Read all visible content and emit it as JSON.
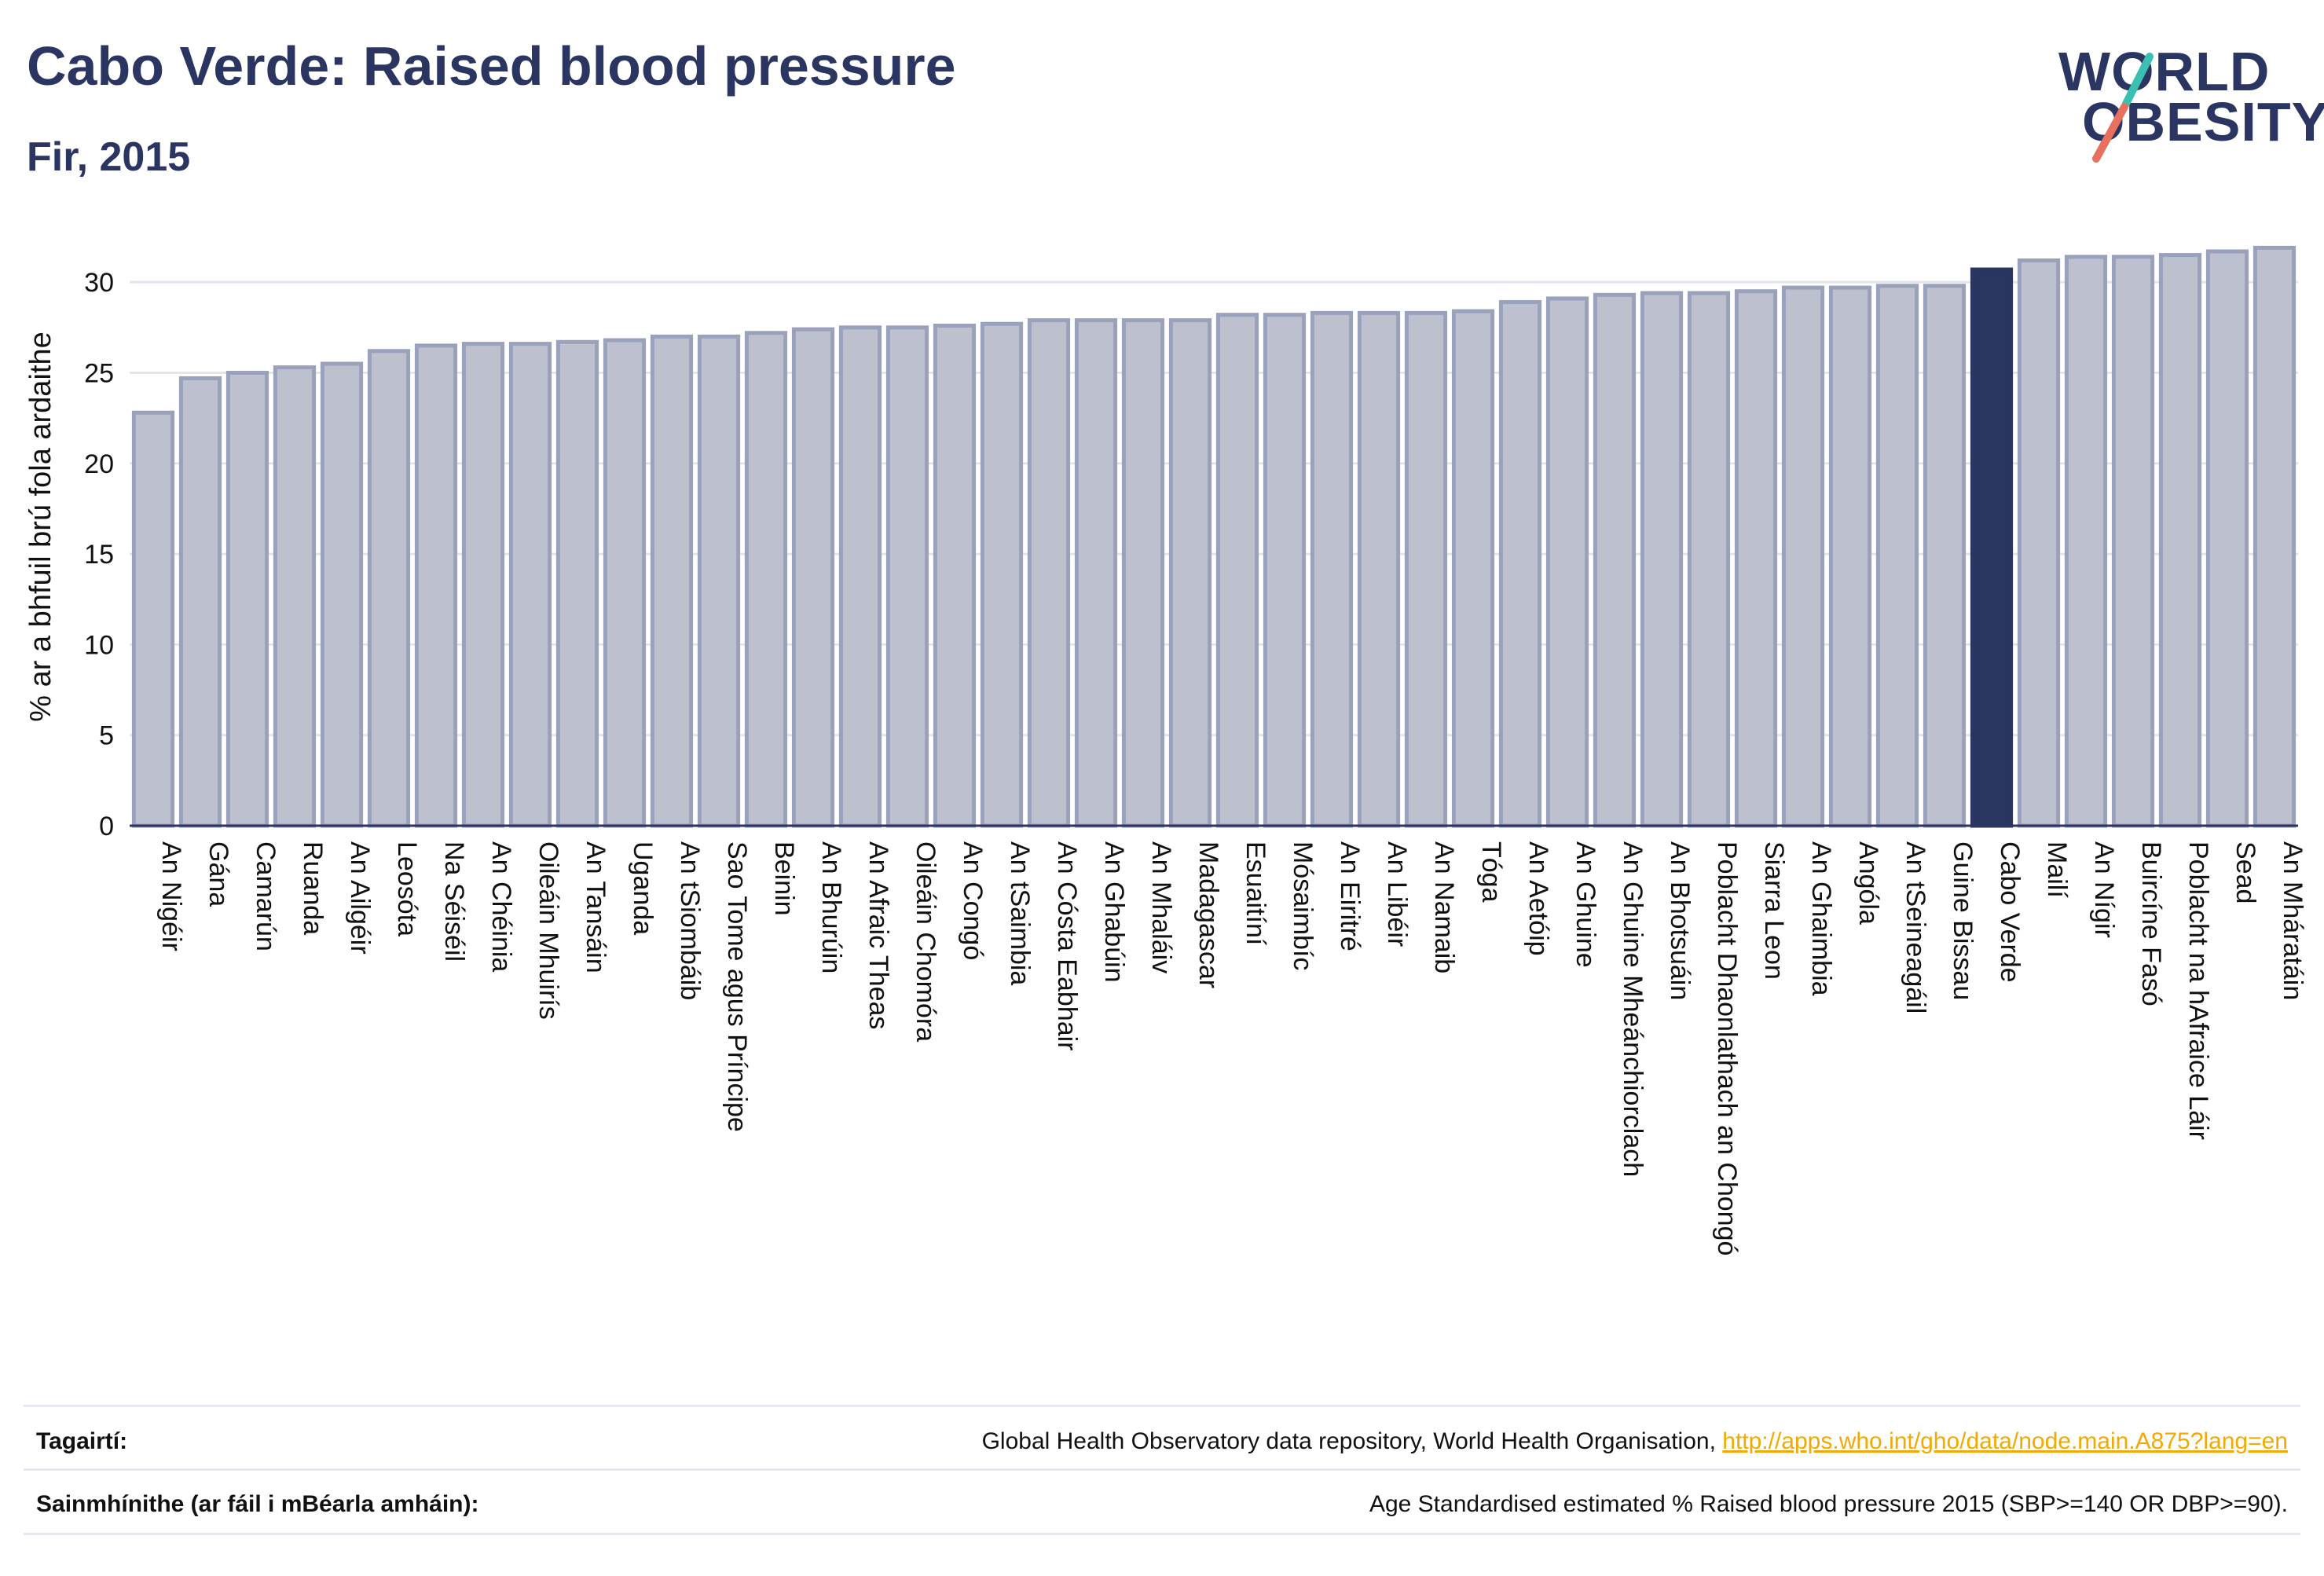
{
  "title": "Cabo Verde: Raised blood pressure",
  "subtitle": "Fir, 2015",
  "logo": {
    "line1": "WORLD",
    "line2": "OBESITY",
    "accent_teal": "#3bbfb1",
    "accent_coral": "#e8705e"
  },
  "colors": {
    "bar": "#bcc0cf",
    "bar_border": "#9aa1bb",
    "highlight": "#2b3561",
    "text": "#2b3561",
    "grid": "#e3e5ee"
  },
  "chart_data": {
    "type": "bar",
    "ylabel": "% ar a bhfuil brú fola ardaithe",
    "ylim": [
      0,
      33
    ],
    "yticks": [
      0,
      5,
      10,
      15,
      20,
      25,
      30
    ],
    "highlight": "Cabo Verde",
    "categories": [
      "An Nigéir",
      "Gána",
      "Camarún",
      "Ruanda",
      "An Ailgéir",
      "Leosóta",
      "Na Séiséil",
      "An Chéinia",
      "Oileáin Mhuirís",
      "An Tansáin",
      "Uganda",
      "An tSiombáib",
      "Sao Tome agus Príncipe",
      "Beinin",
      "An Bhurúin",
      "An Afraic Theas",
      "Oileáin Chomóra",
      "An Congó",
      "An tSaimbia",
      "An Cósta Eabhair",
      "An Ghabúin",
      "An Mhaláiv",
      "Madagascar",
      "Esuaitíní",
      "Mósaimbíc",
      "An Eiritré",
      "An Libéir",
      "An Namaib",
      "Tóga",
      "An Aetóip",
      "An Ghuine",
      "An Ghuine Mheánchiorclach",
      "An Bhotsuáin",
      "Poblacht Dhaonlathach an Chongó",
      "Siarra Leon",
      "An Ghaimbia",
      "Angóla",
      "An tSeineagáil",
      "Guine Bissau",
      "Cabo Verde",
      "Mailí",
      "An Nígir",
      "Buircíne Fasó",
      "Poblacht na hAfraice Láir",
      "Sead",
      "An Mháratáin"
    ],
    "values": [
      22.8,
      24.7,
      25.0,
      25.3,
      25.5,
      26.2,
      26.5,
      26.6,
      26.6,
      26.7,
      26.8,
      27.0,
      27.0,
      27.2,
      27.4,
      27.5,
      27.5,
      27.6,
      27.7,
      27.9,
      27.9,
      27.9,
      27.9,
      28.2,
      28.2,
      28.3,
      28.3,
      28.3,
      28.4,
      28.9,
      29.1,
      29.3,
      29.4,
      29.4,
      29.5,
      29.7,
      29.7,
      29.8,
      29.8,
      30.7,
      31.2,
      31.4,
      31.4,
      31.5,
      31.7,
      31.9
    ]
  },
  "footer": {
    "refs_label": "Tagairtí:",
    "refs_text": "Global Health Observatory data repository, World Health Organisation,",
    "refs_link": "http://apps.who.int/gho/data/node.main.A875?lang=en",
    "defs_label": "Sainmhínithe (ar fáil i mBéarla amháin):",
    "defs_text": "Age Standardised estimated % Raised blood pressure 2015 (SBP>=140 OR DBP>=90)."
  }
}
